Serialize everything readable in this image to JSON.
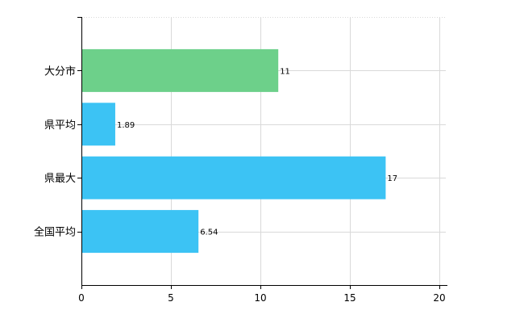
{
  "chart_data": {
    "type": "bar",
    "orientation": "horizontal",
    "categories": [
      "大分市",
      "県平均",
      "県最大",
      "全国平均"
    ],
    "values": [
      11,
      1.89,
      17,
      6.54
    ],
    "value_labels": [
      "11",
      "1.89",
      "17",
      "6.54"
    ],
    "bar_colors": [
      "#6dd08a",
      "#3cc3f4",
      "#3cc3f4",
      "#3cc3f4"
    ],
    "xlim": [
      0,
      20
    ],
    "xticks": [
      0,
      5,
      10,
      15,
      20
    ],
    "grid": true,
    "legend": "none"
  }
}
